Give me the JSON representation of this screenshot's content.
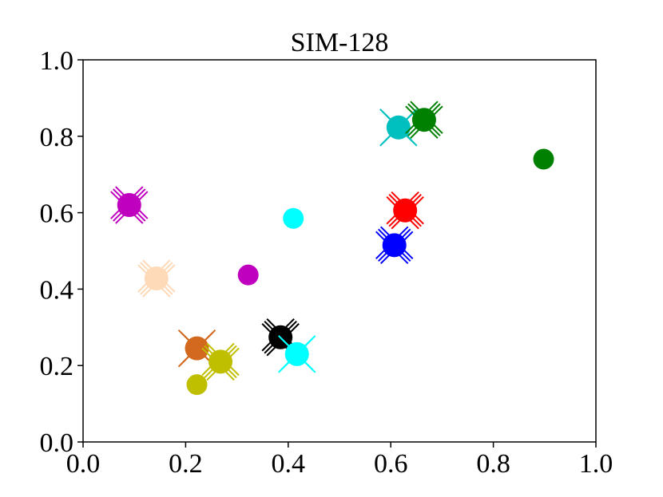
{
  "chart_data": {
    "type": "scatter",
    "title": "SIM-128",
    "xlabel": "",
    "ylabel": "",
    "xlim": [
      0.0,
      1.0
    ],
    "ylim": [
      0.0,
      1.0
    ],
    "xticks": [
      "0.0",
      "0.2",
      "0.4",
      "0.6",
      "0.8",
      "1.0"
    ],
    "yticks": [
      "0.0",
      "0.2",
      "0.4",
      "0.6",
      "0.8",
      "1.0"
    ],
    "grid": false,
    "plain_points": [
      {
        "x": 0.41,
        "y": 0.585,
        "color": "#00ffff"
      },
      {
        "x": 0.322,
        "y": 0.437,
        "color": "#bf00bf"
      },
      {
        "x": 0.222,
        "y": 0.15,
        "color": "#bfbf00"
      },
      {
        "x": 0.898,
        "y": 0.74,
        "color": "#008000"
      }
    ],
    "crossed_points": [
      {
        "x": 0.615,
        "y": 0.823,
        "color": "#00bfbf",
        "dir": "nw"
      },
      {
        "x": 0.665,
        "y": 0.843,
        "color": "#008000",
        "dir": "ne"
      },
      {
        "x": 0.628,
        "y": 0.606,
        "color": "#ff0000",
        "dir": "ne"
      },
      {
        "x": 0.607,
        "y": 0.515,
        "color": "#0000ff",
        "dir": "ne"
      },
      {
        "x": 0.09,
        "y": 0.62,
        "color": "#bf00bf",
        "dir": "ne"
      },
      {
        "x": 0.143,
        "y": 0.428,
        "color": "#ffdab9",
        "dir": "ne"
      },
      {
        "x": 0.222,
        "y": 0.245,
        "color": "#d2691e",
        "dir": "nw"
      },
      {
        "x": 0.268,
        "y": 0.21,
        "color": "#bfbf00",
        "dir": "ne"
      },
      {
        "x": 0.385,
        "y": 0.274,
        "color": "#000000",
        "dir": "ne"
      },
      {
        "x": 0.417,
        "y": 0.23,
        "color": "#00ffff",
        "dir": "nw"
      }
    ]
  }
}
